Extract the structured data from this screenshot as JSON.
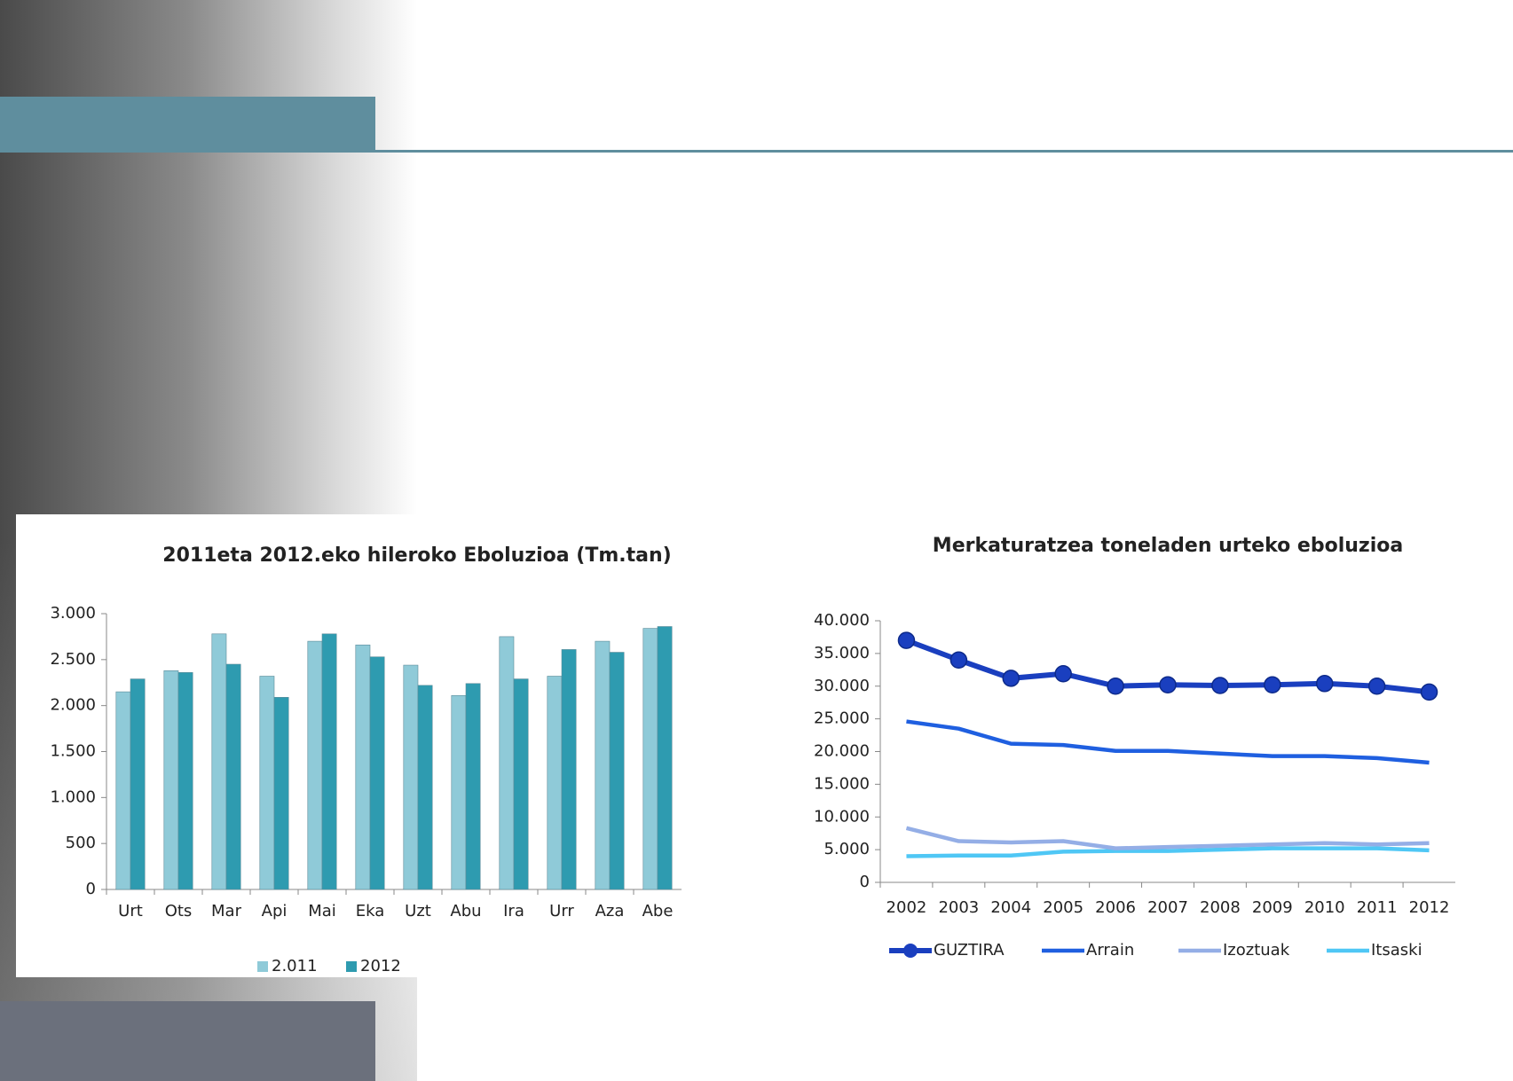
{
  "chart_data": [
    {
      "type": "bar",
      "title": "2011eta 2012.eko hileroko Eboluzioa (Tm.tan)",
      "categories": [
        "Urt",
        "Ots",
        "Mar",
        "Api",
        "Mai",
        "Eka",
        "Uzt",
        "Abu",
        "Ira",
        "Urr",
        "Aza",
        "Abe"
      ],
      "series": [
        {
          "name": "2.011",
          "color": "#8fcad8",
          "values": [
            2150,
            2380,
            2780,
            2320,
            2700,
            2660,
            2440,
            2110,
            2750,
            2320,
            2700,
            2840
          ]
        },
        {
          "name": "2012",
          "color": "#2e9bb0",
          "values": [
            2290,
            2360,
            2450,
            2090,
            2780,
            2530,
            2220,
            2240,
            2290,
            2610,
            2580,
            2860
          ]
        }
      ],
      "ylim": [
        0,
        3000
      ],
      "yticks": [
        0,
        500,
        {
          "value": 1000,
          "label": "1.000"
        },
        {
          "value": 1500,
          "label": "1.500"
        },
        {
          "value": 2000,
          "label": "2.000"
        },
        {
          "value": 2500,
          "label": "2.500"
        },
        {
          "value": 3000,
          "label": "3.000"
        }
      ],
      "grid": false,
      "legend": "bottom"
    },
    {
      "type": "line",
      "title": "Merkaturatzea toneladen urteko eboluzioa",
      "x": [
        2002,
        2003,
        2004,
        2005,
        2006,
        2007,
        2008,
        2009,
        2010,
        2011,
        2012
      ],
      "series": [
        {
          "name": "GUZTIRA",
          "color": "#1a3fbf",
          "marker": true,
          "values": [
            37000,
            34000,
            31200,
            31900,
            30000,
            30200,
            30100,
            30200,
            30400,
            30000,
            29100
          ]
        },
        {
          "name": "Arrain",
          "color": "#1f5fe0",
          "values": [
            24600,
            23500,
            21200,
            21000,
            20100,
            20100,
            19700,
            19300,
            19300,
            19000,
            18300
          ]
        },
        {
          "name": "Izoztuak",
          "color": "#94aee6",
          "values": [
            8300,
            6300,
            6100,
            6300,
            5200,
            5400,
            5600,
            5800,
            6000,
            5800,
            6000
          ]
        },
        {
          "name": "Itsaski",
          "color": "#4fc7f5",
          "values": [
            4000,
            4100,
            4100,
            4700,
            4800,
            4800,
            5000,
            5200,
            5200,
            5200,
            4900
          ]
        }
      ],
      "ylim": [
        0,
        40000
      ],
      "yticks": [
        0,
        {
          "value": 5000,
          "label": "5.000"
        },
        {
          "value": 10000,
          "label": "10.000"
        },
        {
          "value": 15000,
          "label": "15.000"
        },
        {
          "value": 20000,
          "label": "20.000"
        },
        {
          "value": 25000,
          "label": "25.000"
        },
        {
          "value": 30000,
          "label": "30.000"
        },
        {
          "value": 35000,
          "label": "35.000"
        },
        {
          "value": 40000,
          "label": "40.000"
        }
      ],
      "grid": false,
      "legend": "bottom"
    }
  ]
}
